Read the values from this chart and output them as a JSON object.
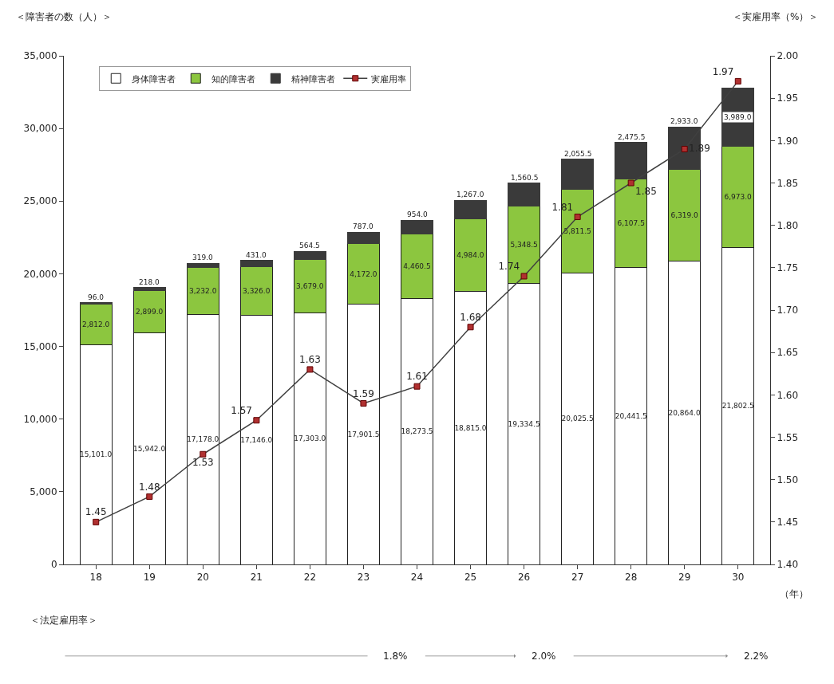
{
  "chart_data": {
    "type": "bar",
    "stacked": true,
    "xlabel": "（年）",
    "ylabel": "＜障害者の数（人）＞",
    "y2label": "＜実雇用率（%）＞",
    "categories": [
      "18",
      "19",
      "20",
      "21",
      "22",
      "23",
      "24",
      "25",
      "26",
      "27",
      "28",
      "29",
      "30"
    ],
    "series": [
      {
        "name": "身体障害者",
        "color": "#ffffff",
        "values": [
          15101.0,
          15942.0,
          17178.0,
          17146.0,
          17303.0,
          17901.5,
          18273.5,
          18815.0,
          19334.5,
          20025.5,
          20441.5,
          20864.0,
          21802.5
        ],
        "value_labels": [
          "15,101.0",
          "15,942.0",
          "17,178.0",
          "17,146.0",
          "17,303.0",
          "17,901.5",
          "18,273.5",
          "18,815.0",
          "19,334.5",
          "20,025.5",
          "20,441.5",
          "20,864.0",
          "21,802.5"
        ]
      },
      {
        "name": "知的障害者",
        "color": "#8cc63f",
        "values": [
          2812.0,
          2899.0,
          3232.0,
          3326.0,
          3679.0,
          4172.0,
          4460.5,
          4984.0,
          5348.5,
          5811.5,
          6107.5,
          6319.0,
          6973.0
        ],
        "value_labels": [
          "2,812.0",
          "2,899.0",
          "3,232.0",
          "3,326.0",
          "3,679.0",
          "4,172.0",
          "4,460.5",
          "4,984.0",
          "5,348.5",
          "5,811.5",
          "6,107.5",
          "6,319.0",
          "6,973.0"
        ]
      },
      {
        "name": "精神障害者",
        "color": "#3a3a3a",
        "values": [
          96.0,
          218.0,
          319.0,
          431.0,
          564.5,
          787.0,
          954.0,
          1267.0,
          1560.5,
          2055.5,
          2475.5,
          2933.0,
          3989.0
        ],
        "value_labels": [
          "96.0",
          "218.0",
          "319.0",
          "431.0",
          "564.5",
          "787.0",
          "954.0",
          "1,267.0",
          "1,560.5",
          "2,055.5",
          "2,475.5",
          "2,933.0",
          "3,989.0"
        ]
      },
      {
        "name": "実雇用率",
        "type": "line",
        "axis": "y2",
        "color": "#404040",
        "marker": "square",
        "values": [
          1.45,
          1.48,
          1.53,
          1.57,
          1.63,
          1.59,
          1.61,
          1.68,
          1.74,
          1.81,
          1.85,
          1.89,
          1.97
        ],
        "value_labels": [
          "1.45",
          "1.48",
          "1.53",
          "1.57",
          "1.63",
          "1.59",
          "1.61",
          "1.68",
          "1.74",
          "1.81",
          "1.85",
          "1.89",
          "1.97"
        ]
      }
    ],
    "ylim": [
      0,
      35000
    ],
    "yticks": [
      0,
      {
        "value": 5000,
        "label": "5,000"
      },
      {
        "value": 10000,
        "label": "10,000"
      },
      {
        "value": 15000,
        "label": "15,000"
      },
      {
        "value": 20000,
        "label": "20,000"
      },
      {
        "value": 25000,
        "label": "25,000"
      },
      {
        "value": 30000,
        "label": "30,000"
      },
      {
        "value": 35000,
        "label": "35,000"
      }
    ],
    "y2lim": [
      1.4,
      2.0
    ],
    "y2ticks": [
      {
        "value": 1.4,
        "label": "1.40"
      },
      1.45,
      {
        "value": 1.5,
        "label": "1.50"
      },
      1.55,
      {
        "value": 1.6,
        "label": "1.60"
      },
      1.65,
      {
        "value": 1.7,
        "label": "1.70"
      },
      1.75,
      {
        "value": 1.8,
        "label": "1.80"
      },
      1.85,
      {
        "value": 1.9,
        "label": "1.90"
      },
      1.95,
      {
        "value": 2.0,
        "label": "2.00"
      }
    ],
    "legend": "top left",
    "grid": false,
    "annotations": [
      "＜法定雇用率＞",
      "1.8%",
      "2.0%",
      "2.2%"
    ]
  }
}
